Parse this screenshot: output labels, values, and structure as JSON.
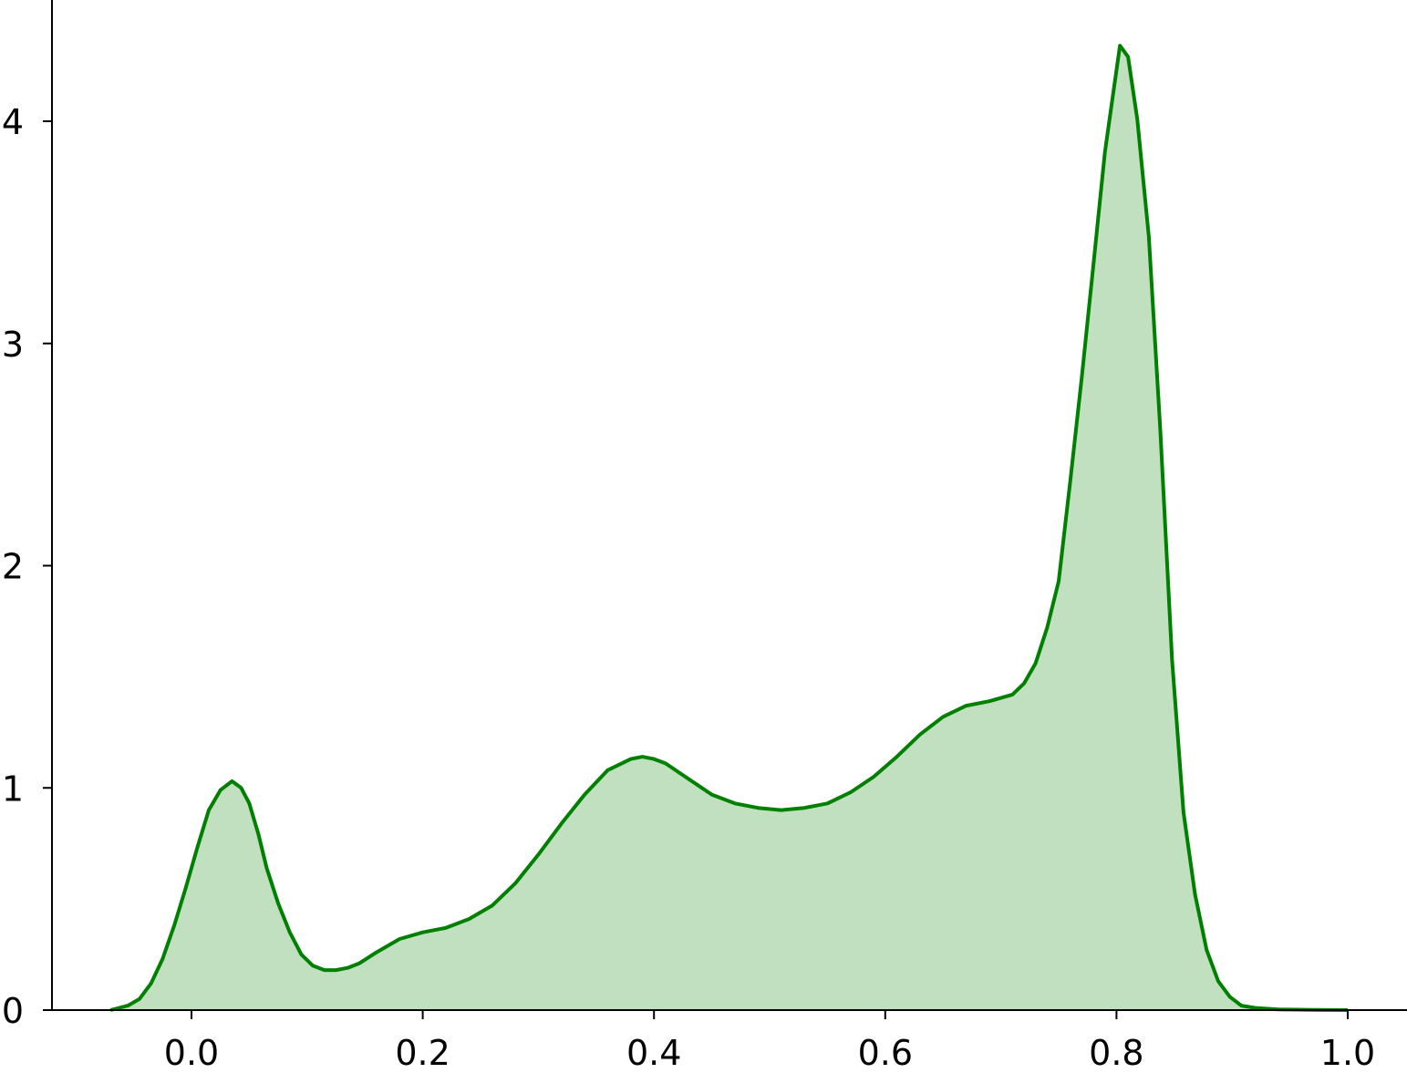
{
  "chart_data": {
    "type": "area",
    "title": "",
    "xlabel": "",
    "ylabel": "",
    "xlim": [
      -0.12,
      1.05
    ],
    "ylim": [
      0,
      4.5
    ],
    "grid": false,
    "legend": "none",
    "x_ticks": [
      {
        "value": 0.0,
        "label": "0.0"
      },
      {
        "value": 0.2,
        "label": "0.2"
      },
      {
        "value": 0.4,
        "label": "0.4"
      },
      {
        "value": 0.6,
        "label": "0.6"
      },
      {
        "value": 0.8,
        "label": "0.8"
      },
      {
        "value": 1.0,
        "label": "1.0"
      }
    ],
    "y_ticks": [
      {
        "value": 0,
        "label": "0"
      },
      {
        "value": 1,
        "label": "1"
      },
      {
        "value": 2,
        "label": "2"
      },
      {
        "value": 3,
        "label": "3"
      },
      {
        "value": 4,
        "label": "4"
      }
    ],
    "series": [
      {
        "color": "#008000",
        "fill": "#c0e0c0",
        "x": [
          -0.07,
          -0.055,
          -0.045,
          -0.035,
          -0.025,
          -0.015,
          -0.005,
          0.005,
          0.015,
          0.025,
          0.035,
          0.043,
          0.05,
          0.058,
          0.065,
          0.075,
          0.085,
          0.095,
          0.105,
          0.115,
          0.125,
          0.135,
          0.145,
          0.16,
          0.18,
          0.2,
          0.22,
          0.24,
          0.26,
          0.28,
          0.3,
          0.32,
          0.34,
          0.36,
          0.38,
          0.39,
          0.4,
          0.41,
          0.43,
          0.45,
          0.47,
          0.49,
          0.51,
          0.53,
          0.55,
          0.57,
          0.59,
          0.61,
          0.63,
          0.65,
          0.67,
          0.69,
          0.71,
          0.72,
          0.73,
          0.74,
          0.75,
          0.76,
          0.77,
          0.78,
          0.79,
          0.797,
          0.803,
          0.81,
          0.818,
          0.828,
          0.838,
          0.848,
          0.858,
          0.868,
          0.878,
          0.888,
          0.898,
          0.908,
          0.92,
          0.94,
          0.97,
          1.0
        ],
        "y": [
          0.0,
          0.02,
          0.05,
          0.12,
          0.23,
          0.38,
          0.55,
          0.73,
          0.9,
          0.99,
          1.03,
          1.0,
          0.93,
          0.79,
          0.64,
          0.48,
          0.35,
          0.25,
          0.2,
          0.18,
          0.18,
          0.19,
          0.21,
          0.26,
          0.32,
          0.35,
          0.37,
          0.41,
          0.47,
          0.57,
          0.7,
          0.84,
          0.97,
          1.08,
          1.13,
          1.14,
          1.13,
          1.11,
          1.04,
          0.97,
          0.93,
          0.91,
          0.9,
          0.91,
          0.93,
          0.98,
          1.05,
          1.14,
          1.24,
          1.32,
          1.37,
          1.39,
          1.42,
          1.47,
          1.56,
          1.72,
          1.93,
          2.38,
          2.85,
          3.35,
          3.86,
          4.12,
          4.34,
          4.29,
          4.01,
          3.48,
          2.6,
          1.58,
          0.89,
          0.52,
          0.27,
          0.13,
          0.06,
          0.02,
          0.01,
          0.003,
          0.001,
          0.0
        ]
      }
    ]
  }
}
